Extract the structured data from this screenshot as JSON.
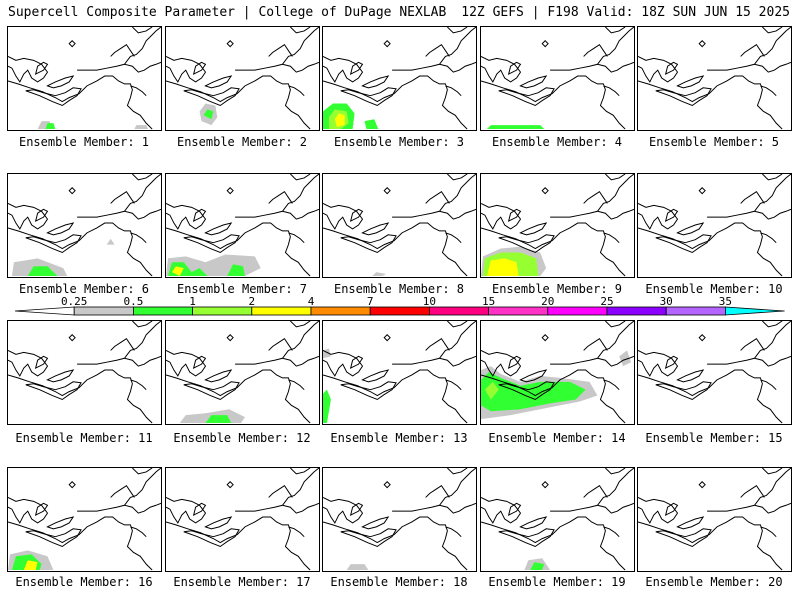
{
  "header": {
    "left": "Supercell Composite Parameter | College of DuPage NEXLAB",
    "right": "12Z GEFS | F198 Valid: 18Z SUN JUN 15 2025"
  },
  "member_prefix": "Ensemble Member:",
  "members": [
    {
      "label": "Ensemble Member: 1",
      "blobs": [
        {
          "region": "south-west coast",
          "level": "0.5-1"
        },
        {
          "region": "south-center",
          "level": "0.25-0.5"
        }
      ]
    },
    {
      "label": "Ensemble Member: 2",
      "blobs": [
        {
          "region": "south-west",
          "level": "0.5-1"
        }
      ]
    },
    {
      "label": "Ensemble Member: 3",
      "blobs": [
        {
          "region": "south-west",
          "level": "2-4"
        }
      ]
    },
    {
      "label": "Ensemble Member: 4",
      "blobs": [
        {
          "region": "south-west edge",
          "level": "0.5-1"
        }
      ]
    },
    {
      "label": "Ensemble Member: 5",
      "blobs": []
    },
    {
      "label": "Ensemble Member: 6",
      "blobs": [
        {
          "region": "south-west",
          "level": "0.5-1"
        }
      ]
    },
    {
      "label": "Ensemble Member: 7",
      "blobs": [
        {
          "region": "south band",
          "level": "2-4"
        }
      ]
    },
    {
      "label": "Ensemble Member: 8",
      "blobs": [
        {
          "region": "south edge",
          "level": "0.25-0.5"
        }
      ]
    },
    {
      "label": "Ensemble Member: 9",
      "blobs": [
        {
          "region": "south-west",
          "level": "2-4"
        }
      ]
    },
    {
      "label": "Ensemble Member: 10",
      "blobs": []
    },
    {
      "label": "Ensemble Member: 11",
      "blobs": []
    },
    {
      "label": "Ensemble Member: 12",
      "blobs": [
        {
          "region": "south band",
          "level": "0.5-1"
        }
      ]
    },
    {
      "label": "Ensemble Member: 13",
      "blobs": [
        {
          "region": "west edge",
          "level": "0.5-1"
        }
      ]
    },
    {
      "label": "Ensemble Member: 14",
      "blobs": [
        {
          "region": "central band",
          "level": "1-2"
        }
      ]
    },
    {
      "label": "Ensemble Member: 15",
      "blobs": []
    },
    {
      "label": "Ensemble Member: 16",
      "blobs": [
        {
          "region": "south-west",
          "level": "2-4"
        }
      ]
    },
    {
      "label": "Ensemble Member: 17",
      "blobs": []
    },
    {
      "label": "Ensemble Member: 18",
      "blobs": [
        {
          "region": "south edge",
          "level": "0.25-0.5"
        }
      ]
    },
    {
      "label": "Ensemble Member: 19",
      "blobs": [
        {
          "region": "south center",
          "level": "0.5-1"
        }
      ]
    },
    {
      "label": "Ensemble Member: 20",
      "blobs": []
    }
  ],
  "colorbar": {
    "ticks": [
      "0.25",
      "0.5",
      "1",
      "2",
      "4",
      "7",
      "10",
      "15",
      "20",
      "25",
      "30",
      "35"
    ],
    "colors": [
      "#ffffff",
      "#c8c8c8",
      "#32ff32",
      "#96ff32",
      "#ffff00",
      "#ff8c00",
      "#ff0000",
      "#ff0080",
      "#ff32c8",
      "#ff00ff",
      "#8c00ff",
      "#b464ff",
      "#00ffff"
    ]
  }
}
